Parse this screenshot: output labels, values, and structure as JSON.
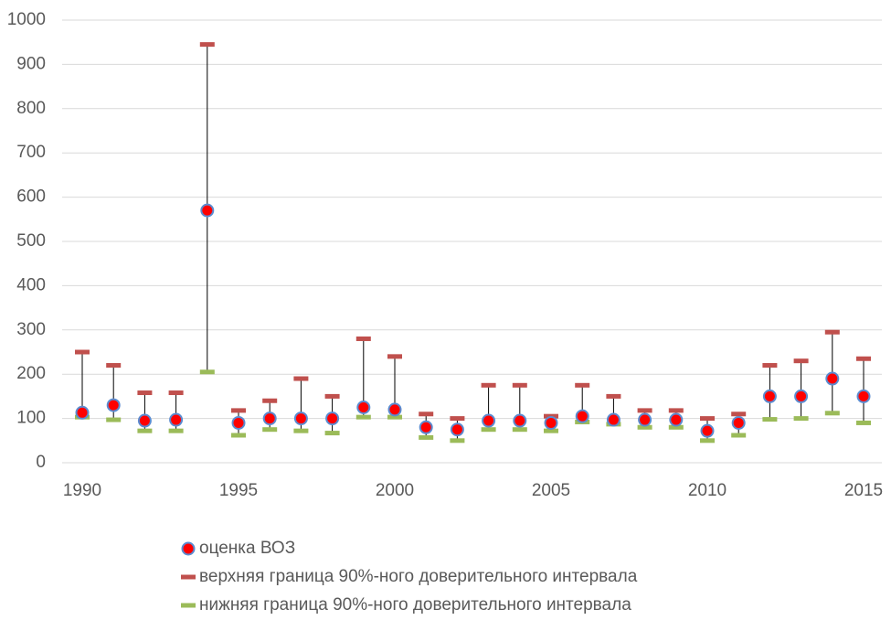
{
  "chart_data": {
    "type": "scatter",
    "x": [
      1990,
      1991,
      1992,
      1993,
      1994,
      1995,
      1996,
      1997,
      1998,
      1999,
      2000,
      2001,
      2002,
      2003,
      2004,
      2005,
      2006,
      2007,
      2008,
      2009,
      2010,
      2011,
      2012,
      2013,
      2014,
      2015
    ],
    "series": [
      {
        "name": "оценка ВОЗ",
        "color": "#ff0000",
        "values": [
          113,
          130,
          95,
          97,
          570,
          90,
          100,
          100,
          100,
          125,
          120,
          80,
          75,
          95,
          95,
          90,
          105,
          97,
          97,
          97,
          72,
          90,
          150,
          150,
          190,
          150
        ]
      },
      {
        "name": "верхняя граница 90%-ного доверительного интервала",
        "color": "#c0504d",
        "values": [
          250,
          220,
          158,
          158,
          945,
          118,
          140,
          190,
          150,
          280,
          240,
          110,
          100,
          175,
          175,
          105,
          175,
          150,
          118,
          118,
          100,
          110,
          220,
          230,
          295,
          235
        ]
      },
      {
        "name": "нижняя граница 90%-ного доверительного интервала",
        "color": "#9bbb59",
        "values": [
          103,
          97,
          72,
          72,
          205,
          62,
          75,
          72,
          67,
          103,
          103,
          57,
          50,
          75,
          75,
          72,
          92,
          87,
          80,
          80,
          50,
          62,
          98,
          100,
          112,
          90
        ]
      }
    ],
    "xlim": [
      1990,
      2015
    ],
    "xticks": [
      1990,
      1995,
      2000,
      2005,
      2010,
      2015
    ],
    "ylim": [
      0,
      1000
    ],
    "yticks": [
      0,
      100,
      200,
      300,
      400,
      500,
      600,
      700,
      800,
      900,
      1000
    ],
    "grid": true
  }
}
